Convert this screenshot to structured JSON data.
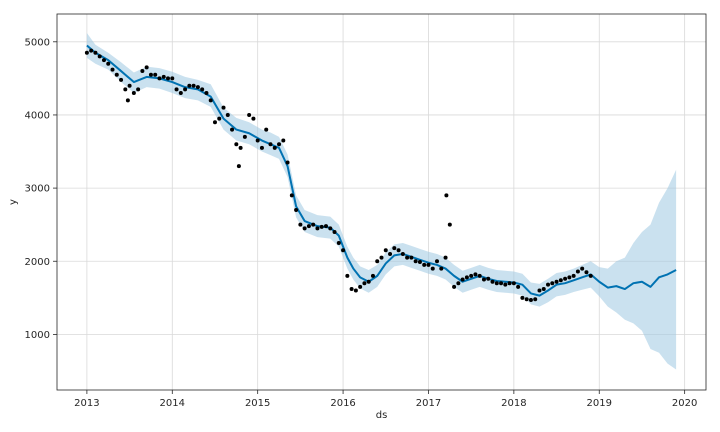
{
  "chart_data": {
    "type": "line",
    "xlabel": "ds",
    "ylabel": "y",
    "xlim": [
      2012.65,
      2020.25
    ],
    "ylim": [
      240,
      5380
    ],
    "x_ticks": [
      2013,
      2014,
      2015,
      2016,
      2017,
      2018,
      2019,
      2020
    ],
    "x_tick_labels": [
      "2013",
      "2014",
      "2015",
      "2016",
      "2017",
      "2018",
      "2019",
      "2020"
    ],
    "y_ticks": [
      1000,
      2000,
      3000,
      4000,
      5000
    ],
    "y_tick_labels": [
      "1000",
      "2000",
      "3000",
      "4000",
      "5000"
    ],
    "grid": true,
    "legend": "none",
    "colors": {
      "forecast": "#0072b2",
      "interval": "#9ec9e2",
      "observed": "#000000",
      "grid": "#d9d9d9"
    },
    "forecast_line": {
      "x": [
        2013.0,
        2013.1,
        2013.25,
        2013.4,
        2013.55,
        2013.7,
        2013.85,
        2014.0,
        2014.15,
        2014.3,
        2014.45,
        2014.6,
        2014.75,
        2014.9,
        2015.05,
        2015.15,
        2015.25,
        2015.35,
        2015.45,
        2015.55,
        2015.7,
        2015.85,
        2015.95,
        2016.05,
        2016.12,
        2016.2,
        2016.3,
        2016.4,
        2016.5,
        2016.6,
        2016.7,
        2016.8,
        2016.9,
        2017.0,
        2017.1,
        2017.2,
        2017.3,
        2017.4,
        2017.5,
        2017.6,
        2017.7,
        2017.8,
        2017.9,
        2018.0,
        2018.1,
        2018.2,
        2018.3,
        2018.4,
        2018.5,
        2018.6,
        2018.7,
        2018.8,
        2018.9,
        2019.0,
        2019.1,
        2019.2,
        2019.3,
        2019.4,
        2019.5,
        2019.6,
        2019.7,
        2019.8,
        2019.9
      ],
      "y": [
        4950,
        4850,
        4750,
        4600,
        4450,
        4520,
        4500,
        4450,
        4380,
        4350,
        4250,
        3950,
        3800,
        3750,
        3650,
        3600,
        3550,
        3300,
        2750,
        2550,
        2480,
        2460,
        2350,
        2050,
        1900,
        1780,
        1720,
        1800,
        1970,
        2080,
        2100,
        2060,
        2020,
        1980,
        1950,
        1900,
        1800,
        1720,
        1760,
        1800,
        1760,
        1730,
        1720,
        1710,
        1680,
        1560,
        1530,
        1600,
        1680,
        1700,
        1740,
        1780,
        1820,
        1720,
        1640,
        1660,
        1620,
        1700,
        1720,
        1650,
        1780,
        1820,
        1880
      ]
    },
    "interval_upper": [
      5120,
      4960,
      4850,
      4720,
      4580,
      4660,
      4640,
      4590,
      4520,
      4480,
      4420,
      4100,
      3960,
      3900,
      3800,
      3760,
      3700,
      3460,
      2900,
      2700,
      2630,
      2610,
      2500,
      2200,
      2050,
      1930,
      1880,
      1950,
      2120,
      2230,
      2250,
      2210,
      2170,
      2130,
      2100,
      2050,
      1950,
      1870,
      1910,
      1950,
      1910,
      1880,
      1870,
      1860,
      1830,
      1710,
      1690,
      1760,
      1840,
      1860,
      1900,
      1950,
      2000,
      1920,
      1900,
      2000,
      2050,
      2250,
      2400,
      2500,
      2800,
      3000,
      3250
    ],
    "interval_lower": [
      4780,
      4700,
      4620,
      4450,
      4300,
      4380,
      4360,
      4300,
      4230,
      4200,
      4110,
      3800,
      3650,
      3600,
      3500,
      3450,
      3400,
      3150,
      2600,
      2400,
      2330,
      2310,
      2200,
      1900,
      1750,
      1630,
      1570,
      1650,
      1820,
      1930,
      1950,
      1910,
      1870,
      1830,
      1800,
      1750,
      1650,
      1570,
      1610,
      1650,
      1610,
      1580,
      1570,
      1560,
      1530,
      1410,
      1380,
      1440,
      1520,
      1540,
      1580,
      1610,
      1640,
      1520,
      1380,
      1300,
      1200,
      1150,
      1050,
      800,
      750,
      600,
      520
    ],
    "observed_points": {
      "x": [
        2013.0,
        2013.05,
        2013.1,
        2013.15,
        2013.2,
        2013.25,
        2013.3,
        2013.35,
        2013.4,
        2013.45,
        2013.48,
        2013.5,
        2013.55,
        2013.6,
        2013.65,
        2013.7,
        2013.75,
        2013.8,
        2013.85,
        2013.9,
        2013.95,
        2014.0,
        2014.05,
        2014.1,
        2014.15,
        2014.2,
        2014.25,
        2014.3,
        2014.35,
        2014.4,
        2014.45,
        2014.5,
        2014.55,
        2014.6,
        2014.65,
        2014.7,
        2014.75,
        2014.78,
        2014.8,
        2014.85,
        2014.9,
        2014.95,
        2015.0,
        2015.05,
        2015.1,
        2015.15,
        2015.2,
        2015.25,
        2015.3,
        2015.35,
        2015.4,
        2015.45,
        2015.5,
        2015.55,
        2015.6,
        2015.65,
        2015.7,
        2015.75,
        2015.8,
        2015.85,
        2015.9,
        2015.95,
        2016.0,
        2016.05,
        2016.1,
        2016.15,
        2016.2,
        2016.25,
        2016.3,
        2016.35,
        2016.4,
        2016.45,
        2016.5,
        2016.55,
        2016.6,
        2016.65,
        2016.7,
        2016.75,
        2016.8,
        2016.85,
        2016.9,
        2016.95,
        2017.0,
        2017.05,
        2017.1,
        2017.15,
        2017.2,
        2017.21,
        2017.25,
        2017.3,
        2017.35,
        2017.4,
        2017.45,
        2017.5,
        2017.55,
        2017.6,
        2017.65,
        2017.7,
        2017.75,
        2017.8,
        2017.85,
        2017.9,
        2017.95,
        2018.0,
        2018.05,
        2018.1,
        2018.15,
        2018.2,
        2018.25,
        2018.3,
        2018.35,
        2018.4,
        2018.45,
        2018.5,
        2018.55,
        2018.6,
        2018.65,
        2018.7,
        2018.75,
        2018.8,
        2018.85,
        2018.9
      ],
      "y": [
        4850,
        4880,
        4850,
        4800,
        4750,
        4700,
        4620,
        4550,
        4480,
        4350,
        4200,
        4400,
        4300,
        4350,
        4600,
        4650,
        4550,
        4550,
        4500,
        4520,
        4500,
        4500,
        4350,
        4300,
        4350,
        4400,
        4400,
        4380,
        4350,
        4300,
        4200,
        3900,
        3950,
        4100,
        4000,
        3800,
        3600,
        3300,
        3550,
        3700,
        4000,
        3950,
        3650,
        3550,
        3800,
        3600,
        3550,
        3600,
        3650,
        3350,
        2900,
        2700,
        2500,
        2450,
        2480,
        2500,
        2450,
        2470,
        2480,
        2450,
        2400,
        2250,
        2150,
        1800,
        1620,
        1600,
        1650,
        1700,
        1720,
        1800,
        2000,
        2050,
        2150,
        2100,
        2180,
        2150,
        2100,
        2050,
        2050,
        2000,
        1990,
        1950,
        1950,
        1900,
        2000,
        1900,
        2050,
        2900,
        2500,
        1650,
        1700,
        1750,
        1780,
        1800,
        1820,
        1800,
        1750,
        1760,
        1720,
        1700,
        1700,
        1680,
        1700,
        1700,
        1650,
        1500,
        1480,
        1470,
        1480,
        1600,
        1620,
        1680,
        1700,
        1720,
        1740,
        1760,
        1780,
        1800,
        1860,
        1900,
        1850,
        1800
      ]
    }
  }
}
